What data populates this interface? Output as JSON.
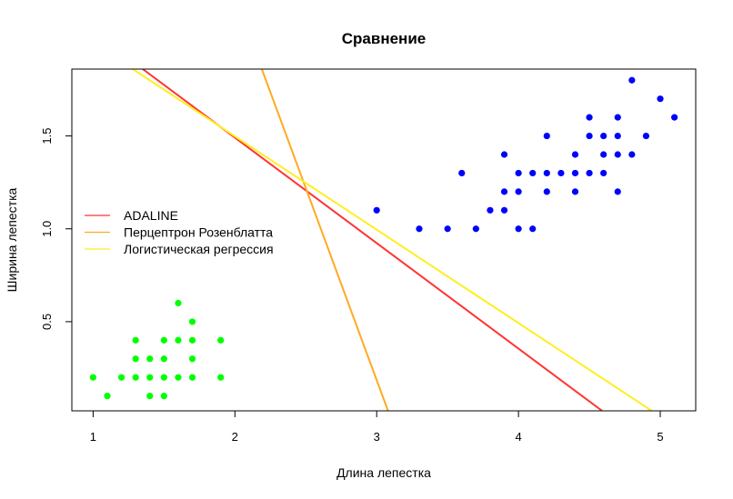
{
  "chart_data": {
    "type": "scatter",
    "title": "Сравнение",
    "xlabel": "Длина лепестка",
    "ylabel": "Ширина лепестка",
    "xlim": [
      0.85,
      5.25
    ],
    "ylim": [
      0.02,
      1.86
    ],
    "x_ticks": [
      1,
      2,
      3,
      4,
      5
    ],
    "y_ticks": [
      0.5,
      1.0,
      1.5
    ],
    "y_tick_labels": [
      "0.5",
      "1.0",
      "1.5"
    ],
    "grid": false,
    "legend_position": "left",
    "series": [
      {
        "kind": "points",
        "color": "#00ff00",
        "points": [
          [
            1.0,
            0.2
          ],
          [
            1.1,
            0.1
          ],
          [
            1.2,
            0.2
          ],
          [
            1.3,
            0.2
          ],
          [
            1.3,
            0.3
          ],
          [
            1.3,
            0.4
          ],
          [
            1.4,
            0.1
          ],
          [
            1.4,
            0.2
          ],
          [
            1.4,
            0.3
          ],
          [
            1.5,
            0.1
          ],
          [
            1.5,
            0.2
          ],
          [
            1.5,
            0.3
          ],
          [
            1.5,
            0.4
          ],
          [
            1.6,
            0.2
          ],
          [
            1.6,
            0.4
          ],
          [
            1.6,
            0.6
          ],
          [
            1.7,
            0.2
          ],
          [
            1.7,
            0.3
          ],
          [
            1.7,
            0.4
          ],
          [
            1.7,
            0.5
          ],
          [
            1.9,
            0.2
          ],
          [
            1.9,
            0.4
          ]
        ]
      },
      {
        "kind": "points",
        "color": "#0000ff",
        "points": [
          [
            3.0,
            1.1
          ],
          [
            3.3,
            1.0
          ],
          [
            3.5,
            1.0
          ],
          [
            3.6,
            1.3
          ],
          [
            3.7,
            1.0
          ],
          [
            3.8,
            1.1
          ],
          [
            3.9,
            1.1
          ],
          [
            3.9,
            1.2
          ],
          [
            3.9,
            1.4
          ],
          [
            4.0,
            1.0
          ],
          [
            4.0,
            1.2
          ],
          [
            4.0,
            1.3
          ],
          [
            4.1,
            1.0
          ],
          [
            4.1,
            1.3
          ],
          [
            4.2,
            1.2
          ],
          [
            4.2,
            1.3
          ],
          [
            4.2,
            1.5
          ],
          [
            4.3,
            1.3
          ],
          [
            4.4,
            1.2
          ],
          [
            4.4,
            1.3
          ],
          [
            4.4,
            1.4
          ],
          [
            4.5,
            1.3
          ],
          [
            4.5,
            1.5
          ],
          [
            4.5,
            1.6
          ],
          [
            4.6,
            1.3
          ],
          [
            4.6,
            1.4
          ],
          [
            4.6,
            1.5
          ],
          [
            4.7,
            1.2
          ],
          [
            4.7,
            1.4
          ],
          [
            4.7,
            1.5
          ],
          [
            4.7,
            1.6
          ],
          [
            4.8,
            1.4
          ],
          [
            4.8,
            1.8
          ],
          [
            4.9,
            1.5
          ],
          [
            5.0,
            1.7
          ],
          [
            5.1,
            1.6
          ]
        ]
      },
      {
        "kind": "line",
        "name": "ADALINE",
        "color": "#ff3333",
        "from": [
          1.35,
          1.86
        ],
        "to": [
          4.59,
          0.02
        ]
      },
      {
        "kind": "line",
        "name": "Перцептрон Розенблатта",
        "color": "#ffaa22",
        "from": [
          2.19,
          1.86
        ],
        "to": [
          3.08,
          0.02
        ]
      },
      {
        "kind": "line",
        "name": "Логистическая регрессия",
        "color": "#ffee22",
        "from": [
          1.28,
          1.86
        ],
        "to": [
          4.94,
          0.02
        ]
      }
    ]
  }
}
